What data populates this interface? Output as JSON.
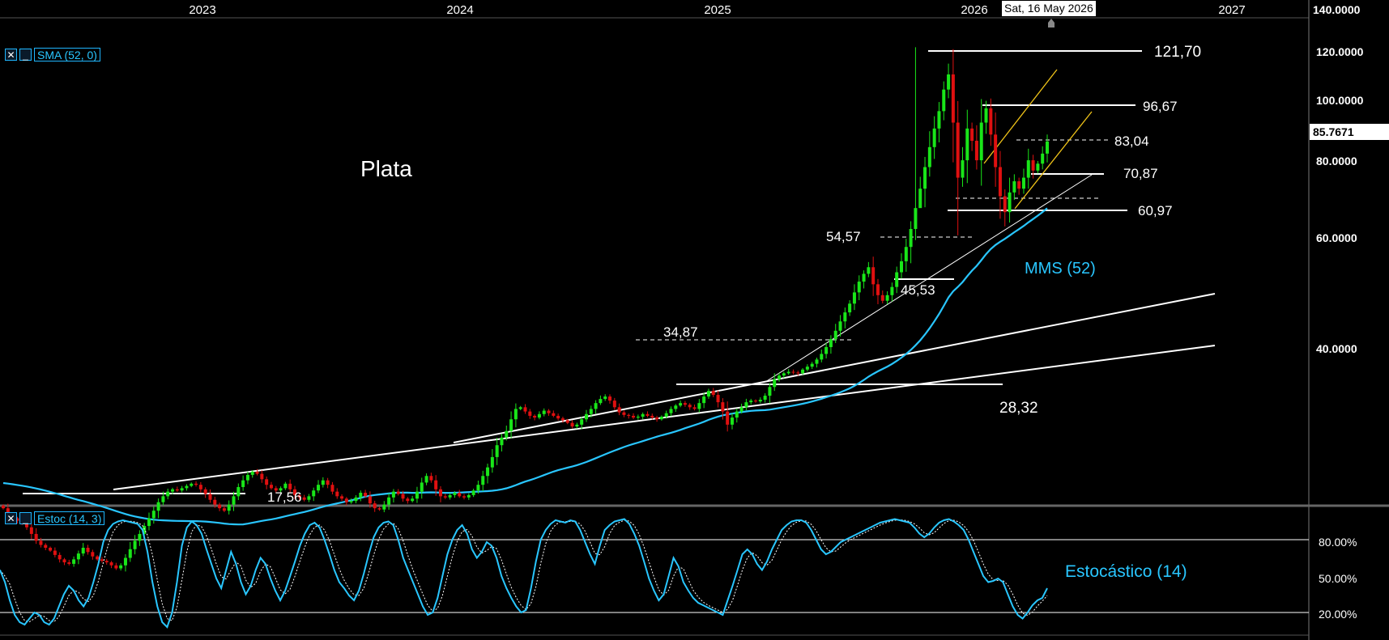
{
  "chart_data": [
    {
      "type": "candlestick",
      "panel": "price",
      "title": "Plata",
      "x_axis_years": [
        "2023",
        "2024",
        "2025",
        "2026",
        "2027"
      ],
      "y_scale": "log",
      "y_ticks": [
        "140.0000",
        "120.0000",
        "100.0000",
        "80.0000",
        "60.0000",
        "40.0000"
      ],
      "last_price": "85.7671",
      "crosshair_date": "Sat, 16 May 2026",
      "indicator": {
        "label": "SMA (52, 0)",
        "annotation": "MMS (52)",
        "color": "#29c6ff"
      },
      "levels": [
        "121,70",
        "96,67",
        "83,04",
        "70,87",
        "60,97",
        "54,57",
        "45,53",
        "34,87",
        "28,32",
        "17,56"
      ],
      "weekly_close": [
        22.0,
        21.5,
        21.2,
        21.0,
        20.8,
        20.5,
        20.0,
        19.5,
        19.2,
        19.0,
        18.8,
        18.5,
        18.2,
        18.0,
        17.9,
        18.2,
        18.6,
        19.0,
        18.7,
        18.4,
        18.2,
        18.1,
        18.0,
        17.8,
        17.6,
        17.8,
        18.3,
        18.9,
        19.5,
        20.0,
        20.6,
        21.2,
        21.8,
        22.5,
        23.0,
        23.4,
        23.6,
        23.5,
        23.7,
        23.9,
        24.1,
        24.0,
        23.6,
        23.2,
        22.7,
        22.3,
        22.0,
        21.8,
        22.3,
        23.0,
        23.8,
        24.4,
        24.9,
        25.2,
        25.0,
        24.5,
        24.0,
        23.7,
        23.5,
        23.7,
        24.1,
        23.6,
        23.1,
        22.9,
        22.7,
        23.0,
        23.5,
        24.0,
        24.4,
        24.0,
        23.4,
        23.0,
        22.8,
        22.5,
        22.6,
        22.9,
        23.3,
        23.0,
        22.4,
        22.0,
        21.9,
        22.3,
        22.9,
        23.4,
        23.2,
        22.8,
        22.6,
        22.8,
        23.4,
        24.2,
        24.8,
        24.4,
        23.6,
        23.0,
        22.9,
        23.1,
        23.3,
        23.0,
        22.9,
        23.1,
        23.5,
        24.0,
        24.8,
        25.6,
        26.6,
        27.8,
        28.6,
        29.3,
        30.6,
        31.8,
        32.0,
        31.5,
        31.0,
        30.8,
        31.2,
        31.6,
        31.3,
        31.0,
        30.7,
        30.5,
        30.2,
        29.8,
        30.0,
        30.6,
        31.2,
        31.8,
        32.5,
        33.0,
        33.3,
        32.8,
        32.0,
        31.4,
        31.1,
        31.0,
        30.8,
        30.9,
        31.2,
        31.0,
        30.8,
        30.6,
        30.9,
        31.3,
        31.8,
        32.2,
        32.5,
        32.3,
        32.0,
        31.8,
        32.5,
        33.3,
        34.0,
        33.5,
        32.6,
        31.5,
        30.0,
        30.8,
        31.5,
        32.0,
        32.6,
        32.8,
        32.7,
        32.9,
        33.4,
        34.5,
        35.5,
        36.0,
        36.3,
        36.5,
        36.4,
        36.3,
        36.8,
        37.2,
        37.6,
        38.2,
        39.0,
        40.0,
        41.2,
        42.5,
        44.0,
        45.5,
        47.0,
        49.0,
        51.0,
        52.5,
        53.8,
        50.5,
        48.5,
        47.5,
        48.5,
        50.0,
        52.8,
        55.0,
        58.0,
        62.0,
        67.0,
        72.0,
        78.0,
        84.0,
        90.0,
        96.0,
        104.0,
        110.0,
        92.0,
        75.0,
        80.0,
        90.0,
        86.0,
        80.0,
        92.0,
        97.0,
        88.0,
        78.0,
        70.0,
        66.0,
        71.0,
        74.0,
        72.0,
        75.0,
        80.0,
        77.0,
        79.0,
        82.0,
        85.77
      ],
      "sma52_style": "cyan line lagging price"
    },
    {
      "type": "line",
      "panel": "oscillator",
      "indicator": {
        "label": "Estoc (14, 3)",
        "annotation": "Estocástico (14)",
        "color": "#29c6ff"
      },
      "y_ticks": [
        "80.00%",
        "50.00%",
        "20.00%"
      ],
      "reference_levels": [
        80,
        20
      ],
      "values_k": [
        55,
        45,
        30,
        18,
        12,
        10,
        15,
        20,
        18,
        12,
        10,
        15,
        25,
        35,
        42,
        38,
        30,
        25,
        32,
        45,
        60,
        78,
        88,
        93,
        95,
        96,
        95,
        94,
        93,
        88,
        70,
        45,
        25,
        12,
        8,
        20,
        45,
        75,
        90,
        95,
        92,
        85,
        72,
        60,
        48,
        40,
        55,
        70,
        60,
        45,
        35,
        42,
        55,
        65,
        60,
        48,
        38,
        30,
        38,
        50,
        62,
        75,
        85,
        92,
        94,
        90,
        80,
        68,
        55,
        45,
        40,
        34,
        30,
        38,
        52,
        68,
        82,
        90,
        94,
        95,
        92,
        80,
        65,
        55,
        45,
        35,
        25,
        18,
        20,
        32,
        50,
        68,
        80,
        88,
        92,
        85,
        72,
        65,
        70,
        78,
        75,
        65,
        50,
        40,
        32,
        25,
        20,
        22,
        40,
        62,
        80,
        88,
        93,
        96,
        95,
        94,
        96,
        95,
        88,
        78,
        68,
        60,
        75,
        88,
        92,
        95,
        96,
        97,
        93,
        85,
        75,
        62,
        48,
        38,
        30,
        35,
        50,
        65,
        58,
        45,
        38,
        32,
        28,
        26,
        24,
        22,
        20,
        18,
        30,
        42,
        55,
        68,
        72,
        68,
        60,
        55,
        62,
        72,
        80,
        88,
        92,
        95,
        96,
        96,
        94,
        88,
        80,
        72,
        68,
        70,
        74,
        78,
        80,
        82,
        84,
        86,
        88,
        90,
        92,
        94,
        95,
        96,
        97,
        96,
        95,
        94,
        90,
        85,
        82,
        85,
        90,
        94,
        96,
        97,
        95,
        92,
        88,
        80,
        70,
        60,
        50,
        45,
        46,
        48,
        45,
        35,
        25,
        18,
        15,
        20,
        26,
        30,
        32,
        40
      ]
    }
  ]
}
